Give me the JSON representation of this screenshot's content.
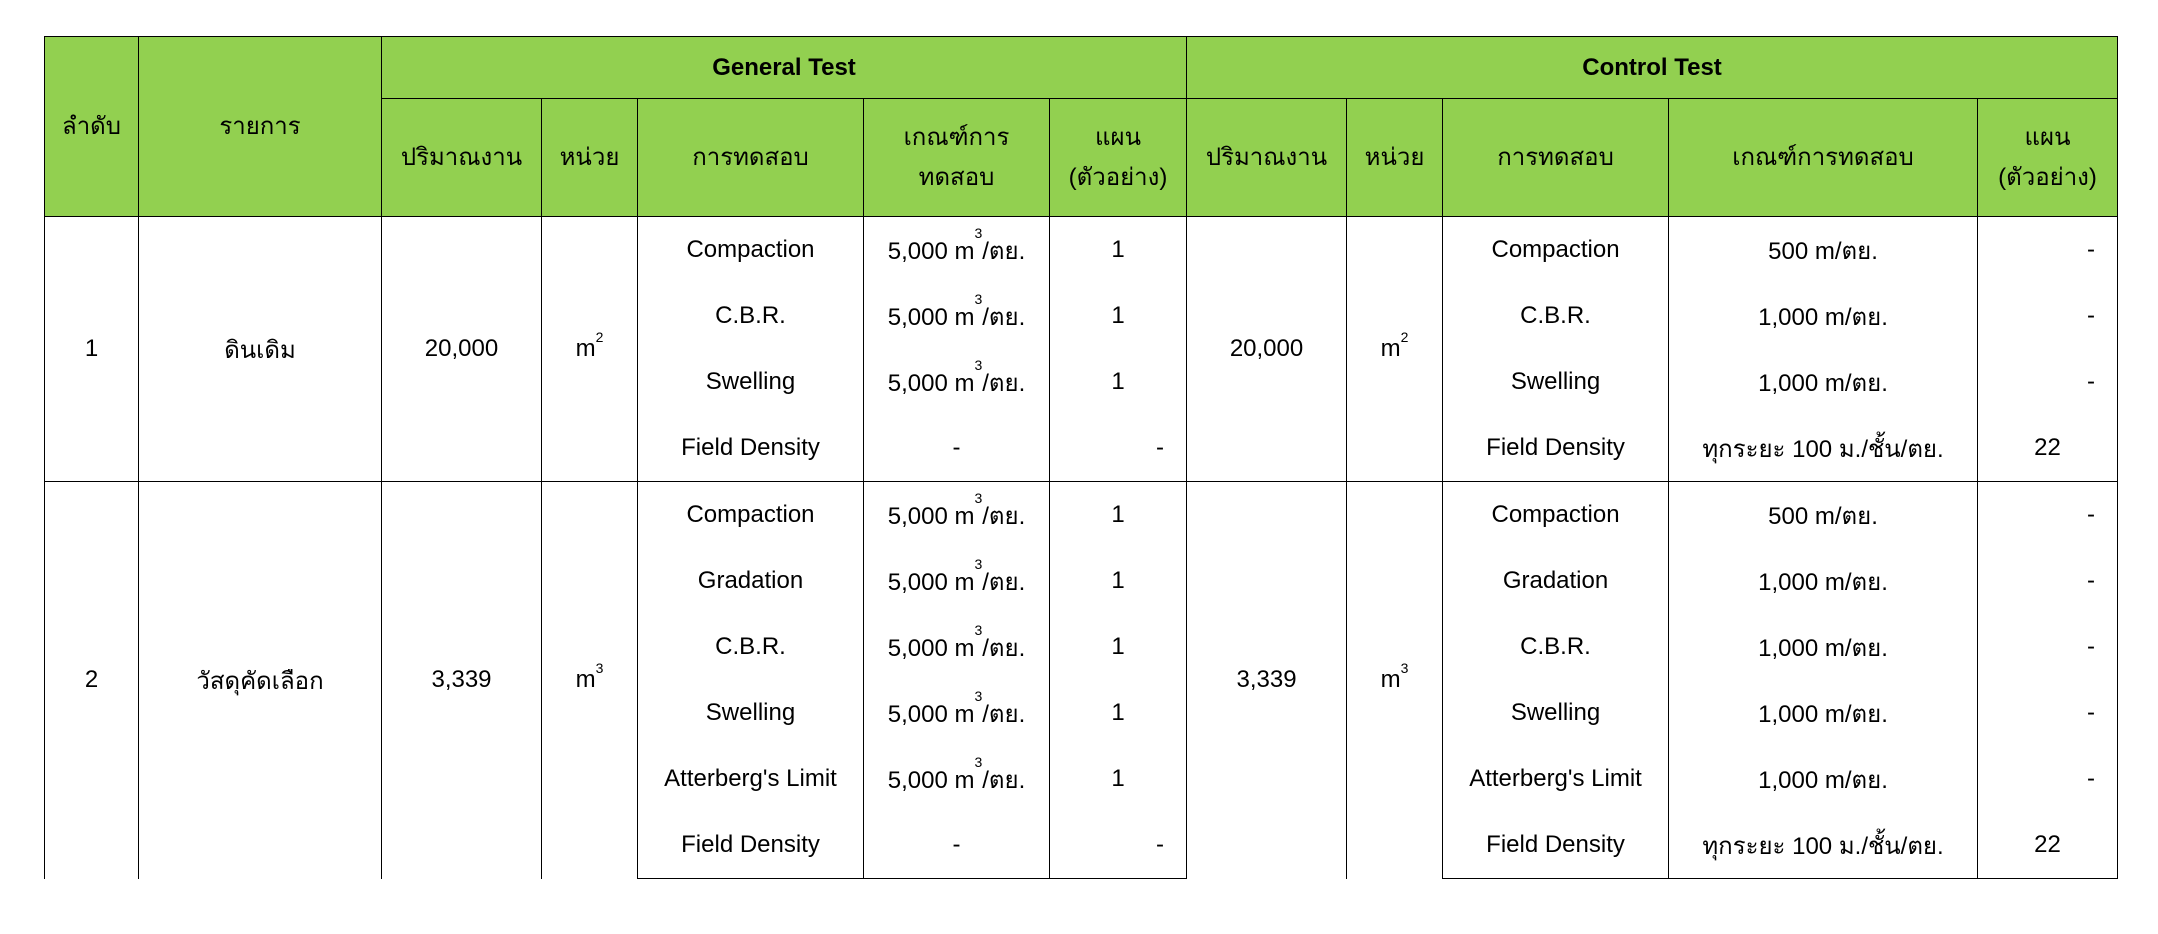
{
  "header": {
    "no": "ลำดับ",
    "item": "รายการ",
    "general_test": "General Test",
    "control_test": "Control Test",
    "general_cols": {
      "quantity": "ปริมาณงาน",
      "unit": "หน่วย",
      "test": "การทดสอบ",
      "criteria_line1": "เกณฑ์การ",
      "criteria_line2": "ทดสอบ",
      "plan_line1": "แผน",
      "plan_line2": "(ตัวอย่าง)"
    },
    "control_cols": {
      "quantity": "ปริมาณงาน",
      "unit": "หน่วย",
      "test": "การทดสอบ",
      "criteria": "เกณฑ์การทดสอบ",
      "plan_line1": "แผน",
      "plan_line2": "(ตัวอย่าง)"
    }
  },
  "colors": {
    "header_bg": "#92d050",
    "border": "#000000"
  },
  "rows": [
    {
      "no": "1",
      "item": "ดินเดิม",
      "general": {
        "quantity": "20,000",
        "unit": "m",
        "unit_sup": "2"
      },
      "control": {
        "quantity": "20,000",
        "unit": "m",
        "unit_sup": "2"
      },
      "tests": [
        {
          "g_test": "Compaction",
          "g_crit": "5,000 m",
          "g_sup": "3",
          "g_suffix": "/ตย.",
          "g_plan": "1",
          "c_test": "Compaction",
          "c_crit": "500 m/ตย.",
          "c_plan": "-"
        },
        {
          "g_test": "C.B.R.",
          "g_crit": "5,000 m",
          "g_sup": "3",
          "g_suffix": "/ตย.",
          "g_plan": "1",
          "c_test": "C.B.R.",
          "c_crit": "1,000 m/ตย.",
          "c_plan": "-"
        },
        {
          "g_test": "Swelling",
          "g_crit": "5,000 m",
          "g_sup": "3",
          "g_suffix": "/ตย.",
          "g_plan": "1",
          "c_test": "Swelling",
          "c_crit": "1,000 m/ตย.",
          "c_plan": "-"
        },
        {
          "g_test": "Field Density",
          "g_crit": "-",
          "g_plan": "-",
          "c_test": "Field Density",
          "c_crit": "ทุกระยะ 100 ม./ชั้น/ตย.",
          "c_plan": "22"
        }
      ]
    },
    {
      "no": "2",
      "item": "วัสดุคัดเลือก",
      "general": {
        "quantity": "3,339",
        "unit": "m",
        "unit_sup": "3"
      },
      "control": {
        "quantity": "3,339",
        "unit": "m",
        "unit_sup": "3"
      },
      "tests": [
        {
          "g_test": "Compaction",
          "g_crit": "5,000 m",
          "g_sup": "3",
          "g_suffix": "/ตย.",
          "g_plan": "1",
          "c_test": "Compaction",
          "c_crit": "500 m/ตย.",
          "c_plan": "-"
        },
        {
          "g_test": "Gradation",
          "g_crit": "5,000 m",
          "g_sup": "3",
          "g_suffix": "/ตย.",
          "g_plan": "1",
          "c_test": "Gradation",
          "c_crit": "1,000 m/ตย.",
          "c_plan": "-"
        },
        {
          "g_test": "C.B.R.",
          "g_crit": "5,000 m",
          "g_sup": "3",
          "g_suffix": "/ตย.",
          "g_plan": "1",
          "c_test": "C.B.R.",
          "c_crit": "1,000 m/ตย.",
          "c_plan": "-"
        },
        {
          "g_test": "Swelling",
          "g_crit": "5,000 m",
          "g_sup": "3",
          "g_suffix": "/ตย.",
          "g_plan": "1",
          "c_test": "Swelling",
          "c_crit": "1,000 m/ตย.",
          "c_plan": "-"
        },
        {
          "g_test": "Atterberg's Limit",
          "g_crit": "5,000 m",
          "g_sup": "3",
          "g_suffix": "/ตย.",
          "g_plan": "1",
          "c_test": "Atterberg's Limit",
          "c_crit": "1,000 m/ตย.",
          "c_plan": "-"
        },
        {
          "g_test": "Field Density",
          "g_crit": "-",
          "g_plan": "-",
          "c_test": "Field Density",
          "c_crit": "ทุกระยะ 100 ม./ชั้น/ตย.",
          "c_plan": "22"
        }
      ]
    }
  ]
}
